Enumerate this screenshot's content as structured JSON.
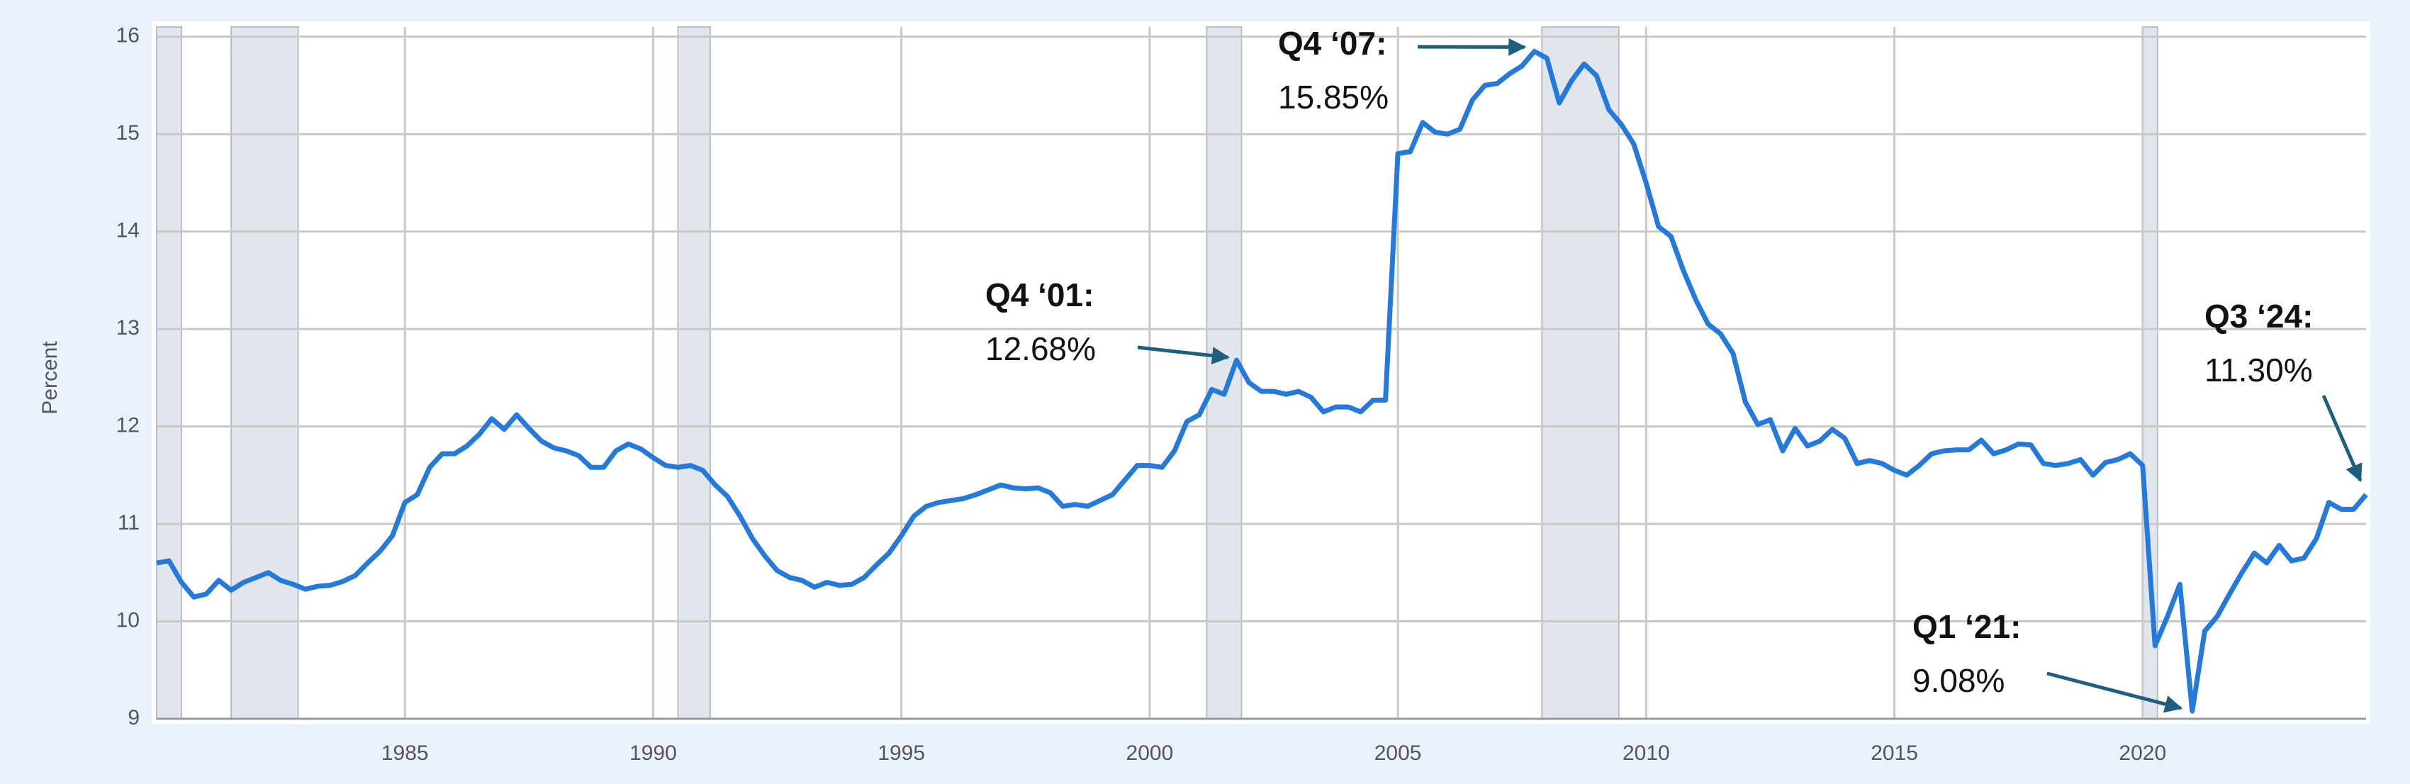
{
  "chart_data": {
    "type": "line",
    "y_label": "Percent",
    "color": "#2479dd",
    "grid": true,
    "xlim": [
      1980,
      2024.5
    ],
    "ylim": [
      9,
      16.1
    ],
    "xticks": [
      1985,
      1990,
      1995,
      2000,
      2005,
      2010,
      2015,
      2020
    ],
    "yticks": [
      9,
      10,
      11,
      12,
      13,
      14,
      15,
      16
    ],
    "recessions": [
      [
        1980.0,
        1980.5
      ],
      [
        1981.5,
        1982.85
      ],
      [
        1990.5,
        1991.15
      ],
      [
        2001.15,
        2001.85
      ],
      [
        2007.9,
        2009.45
      ],
      [
        2020.0,
        2020.3
      ]
    ],
    "x": [
      1980,
      1980.25,
      1980.5,
      1980.75,
      1981,
      1981.25,
      1981.5,
      1981.75,
      1982,
      1982.25,
      1982.5,
      1982.75,
      1983,
      1983.25,
      1983.5,
      1983.75,
      1984,
      1984.25,
      1984.5,
      1984.75,
      1985,
      1985.25,
      1985.5,
      1985.75,
      1986,
      1986.25,
      1986.5,
      1986.75,
      1987,
      1987.25,
      1987.5,
      1987.75,
      1988,
      1988.25,
      1988.5,
      1988.75,
      1989,
      1989.25,
      1989.5,
      1989.75,
      1990,
      1990.25,
      1990.5,
      1990.75,
      1991,
      1991.25,
      1991.5,
      1991.75,
      1992,
      1992.25,
      1992.5,
      1992.75,
      1993,
      1993.25,
      1993.5,
      1993.75,
      1994,
      1994.25,
      1994.5,
      1994.75,
      1995,
      1995.25,
      1995.5,
      1995.75,
      1996,
      1996.25,
      1996.5,
      1996.75,
      1997,
      1997.25,
      1997.5,
      1997.75,
      1998,
      1998.25,
      1998.5,
      1998.75,
      1999,
      1999.25,
      1999.5,
      1999.75,
      2000,
      2000.25,
      2000.5,
      2000.75,
      2001,
      2001.25,
      2001.5,
      2001.75,
      2002,
      2002.25,
      2002.5,
      2002.75,
      2003,
      2003.25,
      2003.5,
      2003.75,
      2004,
      2004.25,
      2004.5,
      2004.75,
      2005,
      2005.25,
      2005.5,
      2005.75,
      2006,
      2006.25,
      2006.5,
      2006.75,
      2007,
      2007.25,
      2007.5,
      2007.75,
      2008,
      2008.25,
      2008.5,
      2008.75,
      2009,
      2009.25,
      2009.5,
      2009.75,
      2010,
      2010.25,
      2010.5,
      2010.75,
      2011,
      2011.25,
      2011.5,
      2011.75,
      2012,
      2012.25,
      2012.5,
      2012.75,
      2013,
      2013.25,
      2013.5,
      2013.75,
      2014,
      2014.25,
      2014.5,
      2014.75,
      2015,
      2015.25,
      2015.5,
      2015.75,
      2016,
      2016.25,
      2016.5,
      2016.75,
      2017,
      2017.25,
      2017.5,
      2017.75,
      2018,
      2018.25,
      2018.5,
      2018.75,
      2019,
      2019.25,
      2019.5,
      2019.75,
      2020,
      2020.25,
      2020.5,
      2020.75,
      2021,
      2021.25,
      2021.5,
      2021.75,
      2022,
      2022.25,
      2022.5,
      2022.75,
      2023,
      2023.25,
      2023.5,
      2023.75,
      2024,
      2024.25,
      2024.5
    ],
    "values": [
      10.6,
      10.62,
      10.4,
      10.25,
      10.28,
      10.42,
      10.32,
      10.4,
      10.45,
      10.5,
      10.42,
      10.38,
      10.33,
      10.36,
      10.37,
      10.41,
      10.47,
      10.6,
      10.72,
      10.88,
      11.22,
      11.3,
      11.58,
      11.72,
      11.72,
      11.8,
      11.92,
      12.08,
      11.97,
      12.12,
      11.98,
      11.85,
      11.78,
      11.75,
      11.7,
      11.58,
      11.58,
      11.75,
      11.82,
      11.77,
      11.68,
      11.6,
      11.58,
      11.6,
      11.55,
      11.4,
      11.28,
      11.08,
      10.85,
      10.67,
      10.52,
      10.45,
      10.42,
      10.35,
      10.4,
      10.37,
      10.38,
      10.45,
      10.58,
      10.7,
      10.88,
      11.08,
      11.18,
      11.22,
      11.24,
      11.26,
      11.3,
      11.35,
      11.4,
      11.37,
      11.36,
      11.37,
      11.32,
      11.18,
      11.2,
      11.18,
      11.24,
      11.3,
      11.45,
      11.6,
      11.6,
      11.58,
      11.75,
      12.05,
      12.12,
      12.38,
      12.33,
      12.68,
      12.45,
      12.36,
      12.36,
      12.33,
      12.36,
      12.3,
      12.15,
      12.2,
      12.2,
      12.15,
      12.27,
      12.27,
      14.8,
      14.82,
      15.12,
      15.02,
      15.0,
      15.05,
      15.35,
      15.5,
      15.52,
      15.62,
      15.7,
      15.85,
      15.78,
      15.32,
      15.55,
      15.72,
      15.6,
      15.25,
      15.1,
      14.9,
      14.5,
      14.05,
      13.95,
      13.6,
      13.3,
      13.05,
      12.95,
      12.75,
      12.25,
      12.02,
      12.07,
      11.75,
      11.98,
      11.8,
      11.85,
      11.97,
      11.88,
      11.62,
      11.65,
      11.62,
      11.55,
      11.5,
      11.6,
      11.72,
      11.75,
      11.76,
      11.76,
      11.86,
      11.72,
      11.76,
      11.82,
      11.81,
      11.62,
      11.6,
      11.62,
      11.66,
      11.5,
      11.63,
      11.66,
      11.72,
      11.6,
      9.75,
      10.05,
      10.38,
      9.08,
      9.9,
      10.05,
      10.28,
      10.5,
      10.7,
      10.6,
      10.78,
      10.62,
      10.65,
      10.85,
      11.22,
      11.15,
      11.15,
      11.3
    ],
    "annotations": [
      {
        "title": "Q4 ‘01:",
        "value": 12.68,
        "value_label": "12.68%",
        "x": 2001.75
      },
      {
        "title": "Q4 ‘07:",
        "value": 15.85,
        "value_label": "15.85%",
        "x": 2007.75
      },
      {
        "title": "Q1 ‘21:",
        "value": 9.08,
        "value_label": "9.08%",
        "x": 2021
      },
      {
        "title": "Q3 ‘24:",
        "value": 11.3,
        "value_label": "11.30%",
        "x": 2024.5
      }
    ]
  }
}
